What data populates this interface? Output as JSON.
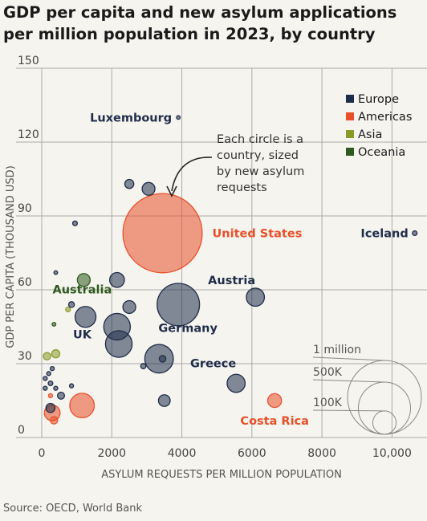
{
  "title": "GDP per capita and new asylum applications per million population in 2023, by country",
  "source": "Source: OECD, World Bank",
  "annotation": [
    "Each circle is a",
    "country, sized",
    "by new asylum",
    "requests"
  ],
  "colors": {
    "Europe": "#1f2d4a",
    "Americas": "#e8502a",
    "Asia": "#8a9a2a",
    "Oceania": "#2d5a1e",
    "grid": "#aaaaaa",
    "background": "#f6f4ef"
  },
  "chart_data": {
    "type": "scatter",
    "title": "GDP per capita and new asylum applications per million population in 2023, by country",
    "xlabel": "ASYLUM REQUESTS PER MILLION POPULATION",
    "ylabel": "GDP PER CAPITA (THOUSAND USD)",
    "xlim": [
      0,
      11000
    ],
    "ylim": [
      0,
      150
    ],
    "xticks": [
      0,
      2000,
      4000,
      6000,
      8000,
      10000
    ],
    "xtick_labels": [
      "0",
      "2000",
      "4000",
      "6000",
      "8000",
      "10,000"
    ],
    "yticks": [
      0,
      30,
      60,
      90,
      120,
      150
    ],
    "ytick_labels": [
      "0",
      "30",
      "60",
      "90",
      "120",
      "150"
    ],
    "grid": true,
    "legend": {
      "position": "top-right",
      "entries": [
        "Europe",
        "Americas",
        "Asia",
        "Oceania"
      ]
    },
    "size_legend": {
      "labels": [
        "1 million",
        "500K",
        "100K"
      ],
      "values": [
        1000000,
        500000,
        100000
      ]
    },
    "points": [
      {
        "label": "United States",
        "region": "Americas",
        "x": 3450,
        "y": 83,
        "size": 1150000
      },
      {
        "label": "Luxembourg",
        "region": "Europe",
        "x": 3900,
        "y": 130,
        "size": 2500
      },
      {
        "label": "Iceland",
        "region": "Europe",
        "x": 10650,
        "y": 83,
        "size": 4000
      },
      {
        "label": "Austria",
        "region": "Europe",
        "x": 6100,
        "y": 57,
        "size": 60000
      },
      {
        "label": "Germany",
        "region": "Europe",
        "x": 3900,
        "y": 54,
        "size": 330000
      },
      {
        "label": "Greece",
        "region": "Europe",
        "x": 5550,
        "y": 22,
        "size": 60000
      },
      {
        "label": "Costa Rica",
        "region": "Americas",
        "x": 6650,
        "y": 15,
        "size": 35000
      },
      {
        "label": "Australia",
        "region": "Oceania",
        "x": 1200,
        "y": 64,
        "size": 30000
      },
      {
        "label": "UK",
        "region": "Europe",
        "x": 1250,
        "y": 49,
        "size": 80000
      },
      {
        "label": "",
        "region": "Europe",
        "x": 2150,
        "y": 45,
        "size": 130000
      },
      {
        "label": "",
        "region": "Europe",
        "x": 2200,
        "y": 38,
        "size": 130000
      },
      {
        "label": "",
        "region": "Europe",
        "x": 3350,
        "y": 32,
        "size": 150000
      },
      {
        "label": "",
        "region": "Europe",
        "x": 3450,
        "y": 32,
        "size": 8000
      },
      {
        "label": "",
        "region": "Europe",
        "x": 2150,
        "y": 64,
        "size": 40000
      },
      {
        "label": "",
        "region": "Europe",
        "x": 2500,
        "y": 53,
        "size": 30000
      },
      {
        "label": "",
        "region": "Europe",
        "x": 2500,
        "y": 103,
        "size": 15000
      },
      {
        "label": "",
        "region": "Europe",
        "x": 3050,
        "y": 101,
        "size": 30000
      },
      {
        "label": "",
        "region": "Europe",
        "x": 3500,
        "y": 15,
        "size": 25000
      },
      {
        "label": "",
        "region": "Europe",
        "x": 2900,
        "y": 29,
        "size": 5000
      },
      {
        "label": "",
        "region": "Europe",
        "x": 950,
        "y": 87,
        "size": 4000
      },
      {
        "label": "",
        "region": "Europe",
        "x": 400,
        "y": 67,
        "size": 2500
      },
      {
        "label": "",
        "region": "Europe",
        "x": 850,
        "y": 54,
        "size": 6000
      },
      {
        "label": "",
        "region": "Europe",
        "x": 550,
        "y": 17,
        "size": 9000
      },
      {
        "label": "",
        "region": "Europe",
        "x": 250,
        "y": 12,
        "size": 15000
      },
      {
        "label": "",
        "region": "Europe",
        "x": 250,
        "y": 22,
        "size": 4000
      },
      {
        "label": "",
        "region": "Europe",
        "x": 100,
        "y": 20,
        "size": 3000
      },
      {
        "label": "",
        "region": "Europe",
        "x": 200,
        "y": 26,
        "size": 3000
      },
      {
        "label": "",
        "region": "Europe",
        "x": 300,
        "y": 28,
        "size": 3000
      },
      {
        "label": "",
        "region": "Europe",
        "x": 100,
        "y": 24,
        "size": 3000
      },
      {
        "label": "",
        "region": "Europe",
        "x": 850,
        "y": 21,
        "size": 3000
      },
      {
        "label": "",
        "region": "Europe",
        "x": 400,
        "y": 20,
        "size": 3000
      },
      {
        "label": "",
        "region": "Americas",
        "x": 1150,
        "y": 13,
        "size": 110000
      },
      {
        "label": "",
        "region": "Americas",
        "x": 300,
        "y": 10,
        "size": 45000
      },
      {
        "label": "",
        "region": "Americas",
        "x": 350,
        "y": 7,
        "size": 10000
      },
      {
        "label": "",
        "region": "Americas",
        "x": 250,
        "y": 17,
        "size": 3000
      },
      {
        "label": "",
        "region": "Asia",
        "x": 400,
        "y": 34,
        "size": 12000
      },
      {
        "label": "",
        "region": "Asia",
        "x": 150,
        "y": 33,
        "size": 10000
      },
      {
        "label": "",
        "region": "Asia",
        "x": 750,
        "y": 52,
        "size": 4000
      },
      {
        "label": "",
        "region": "Oceania",
        "x": 350,
        "y": 46,
        "size": 2500
      }
    ]
  }
}
